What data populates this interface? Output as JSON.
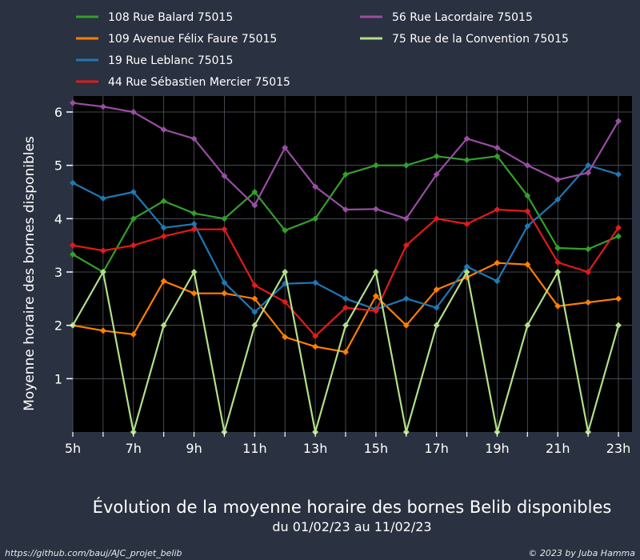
{
  "chart_data": {
    "type": "line",
    "title": "Évolution de la moyenne horaire des bornes Belib disponibles",
    "subtitle": "du 01/02/23 au 11/02/23",
    "xlabel": "",
    "ylabel": "Moyenne horaire des bornes disponibles",
    "x": [
      5,
      6,
      7,
      8,
      9,
      10,
      11,
      12,
      13,
      14,
      15,
      16,
      17,
      18,
      19,
      20,
      21,
      22,
      23
    ],
    "x_tick_values": [
      5,
      7,
      9,
      11,
      13,
      15,
      17,
      19,
      21,
      23
    ],
    "x_tick_labels": [
      "5h",
      "7h",
      "9h",
      "11h",
      "13h",
      "15h",
      "17h",
      "19h",
      "21h",
      "23h"
    ],
    "y_ticks": [
      1,
      2,
      3,
      4,
      5,
      6
    ],
    "xlim": [
      5,
      23
    ],
    "ylim": [
      0,
      6.3
    ],
    "grid": true,
    "legend_position": "top",
    "series": [
      {
        "name": "108 Rue Balard 75015",
        "color": "#33a02c",
        "values": [
          3.33,
          3.0,
          4.0,
          4.33,
          4.1,
          4.0,
          4.5,
          3.78,
          4.0,
          4.83,
          5.0,
          5.0,
          5.17,
          5.1,
          5.17,
          4.43,
          3.45,
          3.43,
          3.67
        ]
      },
      {
        "name": "109 Avenue Félix Faure 75015",
        "color": "#ff7f00",
        "values": [
          2.0,
          1.9,
          1.83,
          2.83,
          2.6,
          2.6,
          2.5,
          1.78,
          1.6,
          1.5,
          2.55,
          2.0,
          2.67,
          2.9,
          3.17,
          3.14,
          2.36,
          2.43,
          2.5
        ]
      },
      {
        "name": "19 Rue Leblanc 75015",
        "color": "#1f78b4",
        "values": [
          4.67,
          4.38,
          4.5,
          3.83,
          3.9,
          2.8,
          2.25,
          2.78,
          2.8,
          2.5,
          2.3,
          2.5,
          2.33,
          3.1,
          2.83,
          3.86,
          4.36,
          5.0,
          4.83
        ]
      },
      {
        "name": "44 Rue Sébastien Mercier 75015",
        "color": "#e31a1c",
        "values": [
          3.5,
          3.4,
          3.5,
          3.67,
          3.8,
          3.8,
          2.75,
          2.44,
          1.8,
          2.33,
          2.27,
          3.5,
          4.0,
          3.9,
          4.17,
          4.14,
          3.18,
          3.0,
          3.83
        ]
      },
      {
        "name": "56 Rue Lacordaire 75015",
        "color": "#984ea3",
        "values": [
          6.17,
          6.1,
          6.0,
          5.67,
          5.5,
          4.8,
          4.25,
          5.33,
          4.6,
          4.17,
          4.18,
          4.0,
          4.83,
          5.5,
          5.33,
          5.0,
          4.73,
          4.86,
          5.83
        ]
      },
      {
        "name": "75 Rue de la Convention 75015",
        "color": "#b2df8a",
        "values": [
          2.0,
          3.0,
          0.0,
          2.0,
          3.0,
          0.0,
          2.0,
          3.0,
          0.0,
          2.0,
          3.0,
          0.0,
          2.0,
          3.0,
          0.0,
          2.0,
          3.0,
          0.0,
          2.0
        ]
      }
    ]
  },
  "footer": {
    "source": "https://github.com/bauj/AJC_projet_belib",
    "credit": "© 2023 by Juba Hamma"
  }
}
